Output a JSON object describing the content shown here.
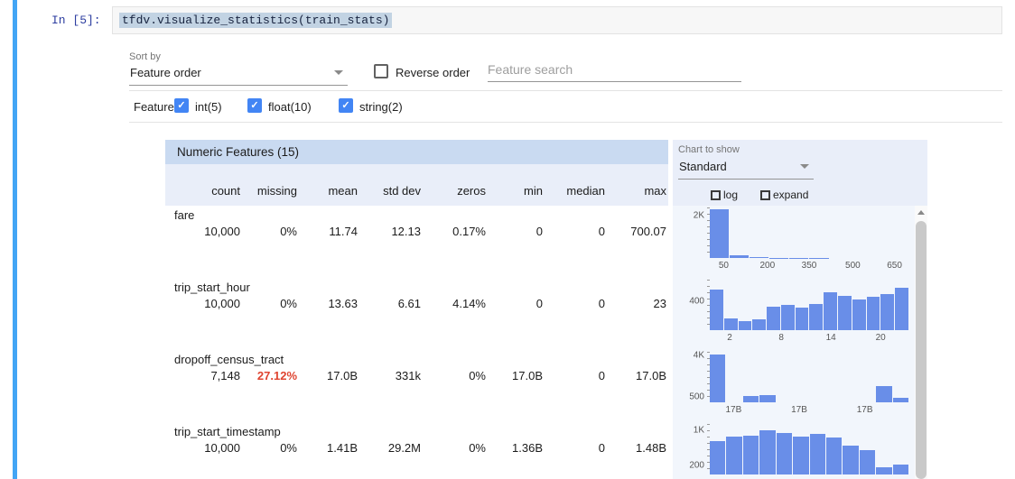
{
  "colors": {
    "accent_bar": "#42a5f5",
    "prompt": "#2d3ea0",
    "selection_bg": "#c2d3e3",
    "header_bg": "#c9daf1",
    "subheader_bg": "#e9eef9",
    "bar": "#698ee8",
    "alert": "#df4430",
    "checkbox": "#4285f4"
  },
  "notebook": {
    "prompt": "In [5]:",
    "code": "tfdv.visualize_statistics(train_stats)"
  },
  "controls": {
    "sort_by_label": "Sort by",
    "sort_by_value": "Feature order",
    "reverse_order_label": "Reverse order",
    "reverse_order_checked": false,
    "search_placeholder": "Feature search",
    "features_label": "Features:",
    "feature_filters": [
      {
        "label": "int(5)",
        "checked": true
      },
      {
        "label": "float(10)",
        "checked": true
      },
      {
        "label": "string(2)",
        "checked": true
      }
    ]
  },
  "chart_controls": {
    "label": "Chart to show",
    "value": "Standard",
    "log_label": "log",
    "log_checked": false,
    "expand_label": "expand",
    "expand_checked": false
  },
  "table": {
    "title": "Numeric Features (15)",
    "columns": [
      "count",
      "missing",
      "mean",
      "std dev",
      "zeros",
      "min",
      "median",
      "max"
    ],
    "rows": [
      {
        "name": "fare",
        "count": "10,000",
        "missing": "0%",
        "missing_alert": false,
        "mean": "11.74",
        "std_dev": "12.13",
        "zeros": "0.17%",
        "min": "0",
        "median": "0",
        "max": "700.07"
      },
      {
        "name": "trip_start_hour",
        "count": "10,000",
        "missing": "0%",
        "missing_alert": false,
        "mean": "13.63",
        "std_dev": "6.61",
        "zeros": "4.14%",
        "min": "0",
        "median": "0",
        "max": "23"
      },
      {
        "name": "dropoff_census_tract",
        "count": "7,148",
        "missing": "27.12%",
        "missing_alert": true,
        "mean": "17.0B",
        "std_dev": "331k",
        "zeros": "0%",
        "min": "17.0B",
        "median": "0",
        "max": "17.0B"
      },
      {
        "name": "trip_start_timestamp",
        "count": "10,000",
        "missing": "0%",
        "missing_alert": false,
        "mean": "1.41B",
        "std_dev": "29.2M",
        "zeros": "0%",
        "min": "1.36B",
        "median": "0",
        "max": "1.48B"
      }
    ]
  },
  "chart_data": [
    {
      "type": "bar",
      "title": "fare",
      "ymax": 2400,
      "values": [
        2320,
        150,
        40,
        16,
        8,
        5,
        3,
        2,
        1,
        1
      ],
      "yticks": [
        {
          "label": "2K",
          "value": 2000
        }
      ],
      "xticks": [
        {
          "label": "50",
          "pos": 0.07
        },
        {
          "label": "200",
          "pos": 0.29
        },
        {
          "label": "350",
          "pos": 0.5
        },
        {
          "label": "500",
          "pos": 0.72
        },
        {
          "label": "650",
          "pos": 0.93
        }
      ]
    },
    {
      "type": "bar",
      "title": "trip_start_hour",
      "ymax": 700,
      "values": [
        560,
        165,
        130,
        150,
        320,
        345,
        315,
        365,
        525,
        475,
        425,
        465,
        495,
        585
      ],
      "yticks": [
        {
          "label": "400",
          "value": 400
        }
      ],
      "xticks": [
        {
          "label": "2",
          "pos": 0.1
        },
        {
          "label": "8",
          "pos": 0.36
        },
        {
          "label": "14",
          "pos": 0.61
        },
        {
          "label": "20",
          "pos": 0.86
        }
      ]
    },
    {
      "type": "bar",
      "title": "dropoff_census_tract",
      "ymax": 4300,
      "values": [
        4050,
        0,
        560,
        640,
        0,
        0,
        0,
        0,
        0,
        0,
        1350,
        420
      ],
      "yticks": [
        {
          "label": "4K",
          "value": 4000
        },
        {
          "label": "500",
          "value": 500
        }
      ],
      "xticks": [
        {
          "label": "17B",
          "pos": 0.12
        },
        {
          "label": "17B",
          "pos": 0.45
        },
        {
          "label": "17B",
          "pos": 0.78
        }
      ]
    },
    {
      "type": "bar",
      "title": "trip_start_timestamp",
      "ymax": 1150,
      "values": [
        770,
        860,
        890,
        1000,
        940,
        870,
        930,
        850,
        660,
        560,
        170,
        230
      ],
      "yticks": [
        {
          "label": "1K",
          "value": 1000
        },
        {
          "label": "200",
          "value": 200
        }
      ],
      "xticks": []
    }
  ]
}
